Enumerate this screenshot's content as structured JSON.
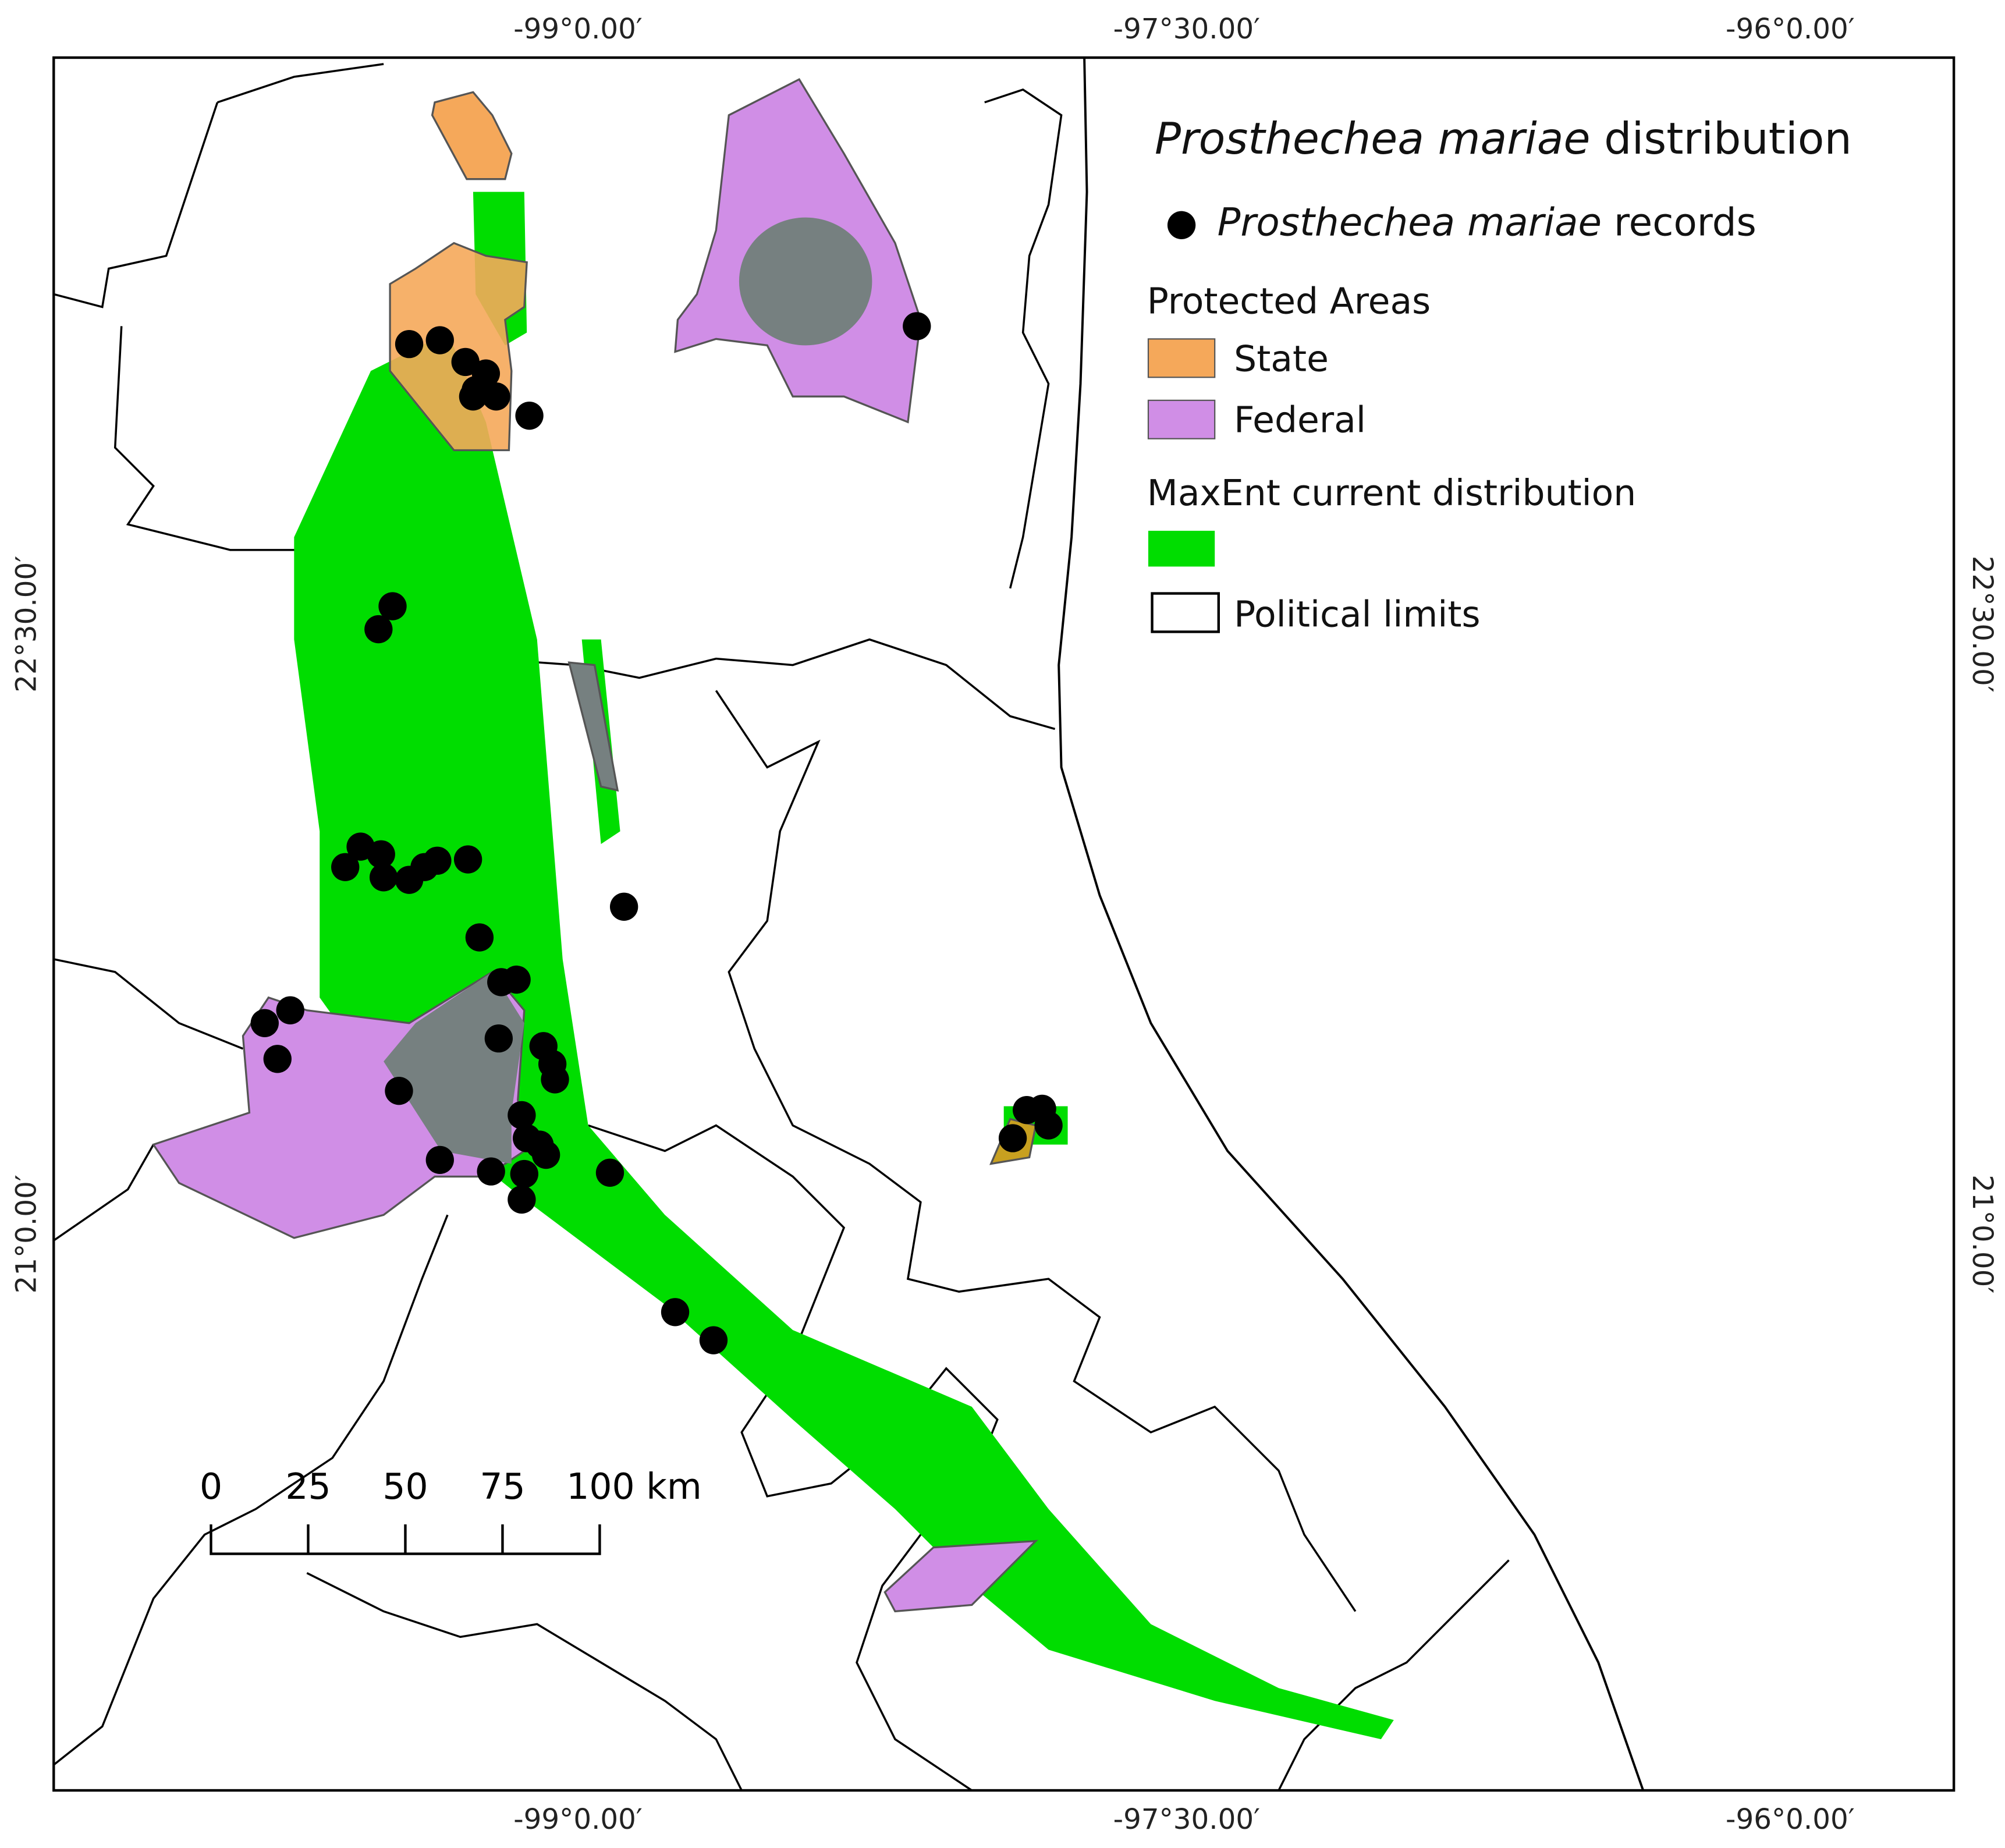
{
  "map": {
    "title": {
      "species": "Prosthechea mariae",
      "suffix": "distribution"
    },
    "legend": {
      "records": {
        "species": "Prosthechea mariae",
        "suffix": "records"
      },
      "protected_areas": {
        "heading": "Protected Areas",
        "items": [
          "State",
          "Federal"
        ]
      },
      "maxent": "MaxEnt current distribution",
      "political": "Political limits"
    },
    "longitude_labels": [
      "-99°0.00′",
      "-97°30.00′",
      "-96°0.00′"
    ],
    "latitude_labels": [
      "22°30.00′",
      "21°0.00′"
    ],
    "scale_bar": {
      "labels": [
        "0",
        "25",
        "50",
        "75",
        "100 km"
      ]
    }
  }
}
